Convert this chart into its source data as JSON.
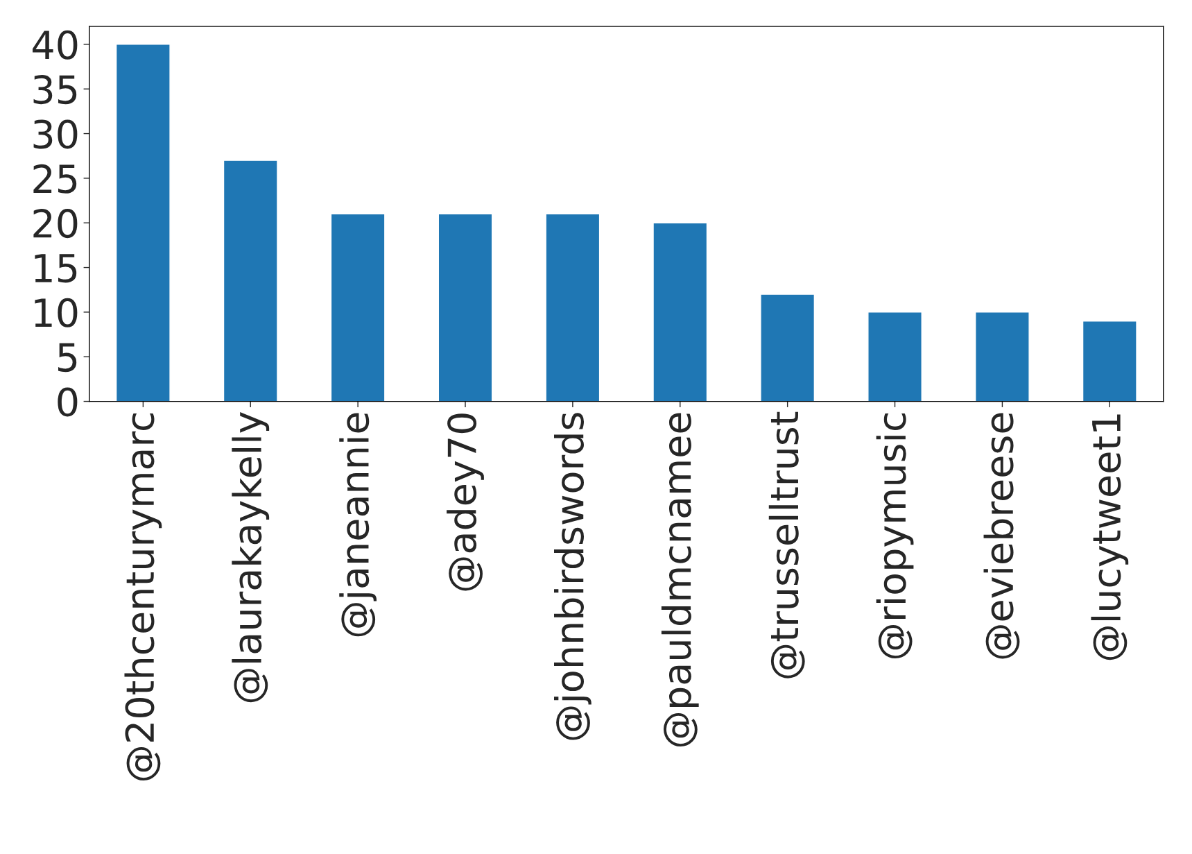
{
  "chart_data": {
    "type": "bar",
    "categories": [
      "@20thcenturymarc",
      "@laurakaykelly",
      "@janeannie",
      "@adey70",
      "@johnbirdswords",
      "@pauldmcnamee",
      "@trusselltrust",
      "@riopymusic",
      "@eviebreese",
      "@lucytweet1"
    ],
    "values": [
      40,
      27,
      21,
      21,
      21,
      20,
      12,
      10,
      10,
      9
    ],
    "color": "#1f77b4",
    "ylim": [
      0,
      42
    ],
    "yticks": [
      0,
      5,
      10,
      15,
      20,
      25,
      30,
      35,
      40
    ],
    "grid": false
  }
}
